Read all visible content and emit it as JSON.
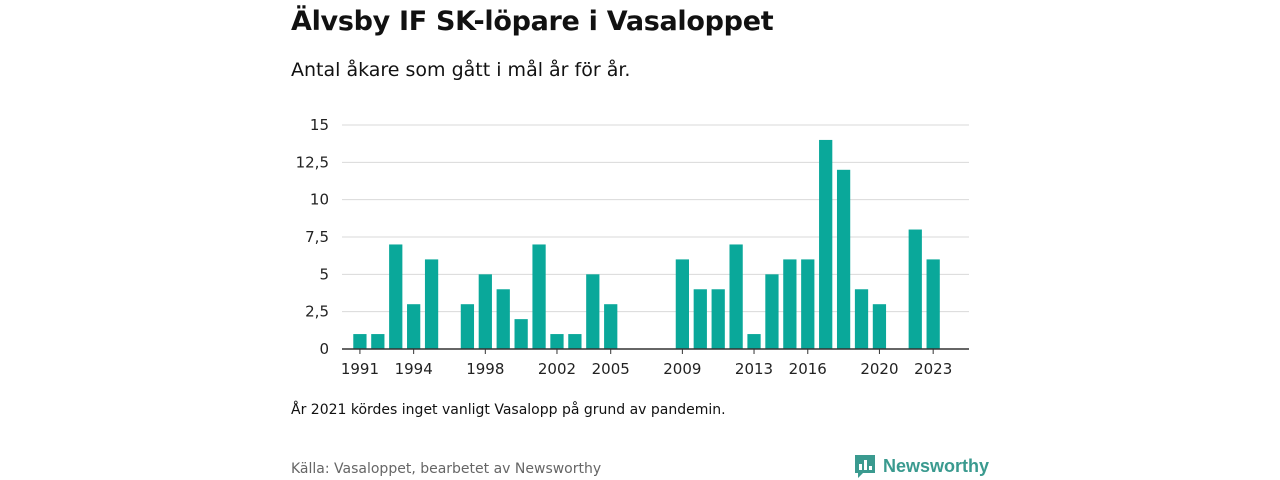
{
  "title": "Älvsby IF SK-löpare i Vasaloppet",
  "subtitle": "Antal åkare som gått i mål år för år.",
  "note": "År 2021 kördes inget vanligt Vasalopp på grund av pandemin.",
  "source": "Källa: Vasaloppet, bearbetet av Newsworthy",
  "brand": {
    "name": "Newsworthy",
    "icon": "newsworthy-logo-icon",
    "color": "#3a9a8f"
  },
  "chart_data": {
    "type": "bar",
    "title": "",
    "xlabel": "",
    "ylabel": "",
    "bar_color": "#0aa89a",
    "x": [
      1991,
      1992,
      1993,
      1994,
      1995,
      1997,
      1998,
      1999,
      2000,
      2001,
      2002,
      2003,
      2004,
      2005,
      2009,
      2010,
      2011,
      2012,
      2013,
      2014,
      2015,
      2016,
      2017,
      2018,
      2019,
      2020,
      2022,
      2023
    ],
    "values": [
      1,
      1,
      7,
      3,
      6,
      3,
      5,
      4,
      2,
      7,
      1,
      1,
      5,
      3,
      6,
      4,
      4,
      7,
      1,
      5,
      6,
      6,
      14,
      12,
      4,
      3,
      8,
      6
    ],
    "xlim": [
      1990,
      2025
    ],
    "ylim": [
      0,
      15
    ],
    "y_ticks": [
      0,
      2.5,
      5,
      7.5,
      10,
      12.5,
      15
    ],
    "y_tick_labels": [
      "0",
      "2,5",
      "5",
      "7,5",
      "10",
      "12,5",
      "15"
    ],
    "x_ticks": [
      1991,
      1994,
      1998,
      2002,
      2005,
      2009,
      2013,
      2016,
      2020,
      2023
    ],
    "x_tick_labels": [
      "1991",
      "1994",
      "1998",
      "2002",
      "2005",
      "2009",
      "2013",
      "2016",
      "2020",
      "2023"
    ],
    "grid": true
  }
}
